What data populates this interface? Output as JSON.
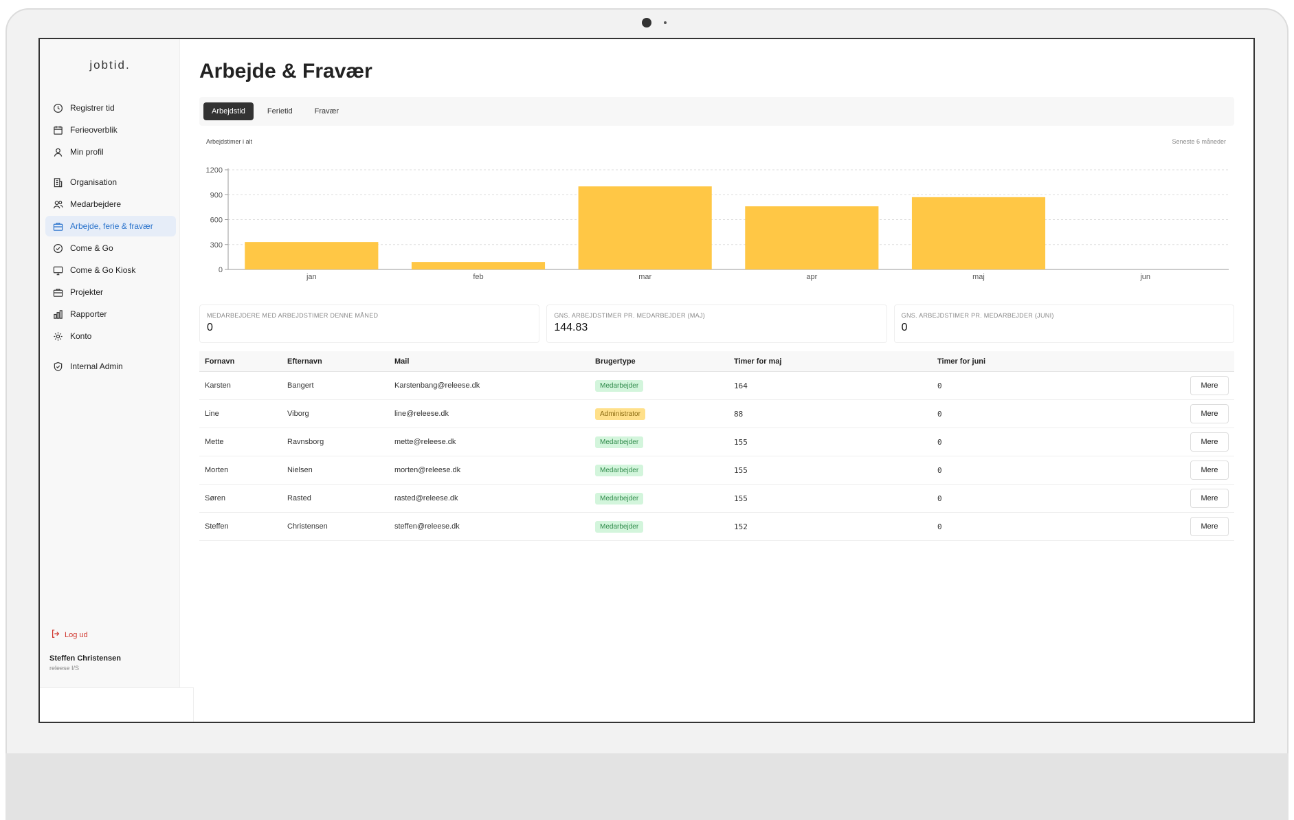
{
  "app": {
    "logo": "jobtid."
  },
  "sidebar": {
    "groups": [
      [
        {
          "label": "Registrer tid",
          "icon": "clock-icon"
        },
        {
          "label": "Ferieoverblik",
          "icon": "calendar-icon"
        },
        {
          "label": "Min profil",
          "icon": "user-icon"
        }
      ],
      [
        {
          "label": "Organisation",
          "icon": "building-icon"
        },
        {
          "label": "Medarbejdere",
          "icon": "users-icon"
        },
        {
          "label": "Arbejde, ferie & fravær",
          "icon": "briefcase-icon",
          "active": true
        },
        {
          "label": "Come & Go",
          "icon": "check-circle-icon"
        },
        {
          "label": "Come & Go Kiosk",
          "icon": "monitor-icon"
        },
        {
          "label": "Projekter",
          "icon": "folder-icon"
        },
        {
          "label": "Rapporter",
          "icon": "bar-chart-icon"
        },
        {
          "label": "Konto",
          "icon": "gear-icon"
        }
      ],
      [
        {
          "label": "Internal Admin",
          "icon": "shield-icon"
        }
      ]
    ],
    "logout": "Log ud",
    "user": {
      "name": "Steffen Christensen",
      "org": "releese I/S"
    }
  },
  "main": {
    "title": "Arbejde & Fravær",
    "tabs": [
      {
        "label": "Arbejdstid",
        "active": true
      },
      {
        "label": "Ferietid",
        "active": false
      },
      {
        "label": "Fravær",
        "active": false
      }
    ]
  },
  "chart_data": {
    "type": "bar",
    "title": "Arbejdstimer i alt",
    "range_label": "Seneste 6 måneder",
    "categories": [
      "jan",
      "feb",
      "mar",
      "apr",
      "maj",
      "jun"
    ],
    "values": [
      330,
      90,
      1000,
      760,
      870,
      0
    ],
    "yticks": [
      0,
      300,
      600,
      900,
      1200
    ],
    "ylim": [
      0,
      1200
    ],
    "grid": true,
    "color": "#ffc745"
  },
  "stats": [
    {
      "label": "Medarbejdere med arbejdstimer denne måned",
      "value": "0"
    },
    {
      "label": "Gns. arbejdstimer pr. medarbejder (maj)",
      "value": "144.83"
    },
    {
      "label": "Gns. arbejdstimer pr. medarbejder (juni)",
      "value": "0"
    }
  ],
  "table": {
    "headers": [
      "Fornavn",
      "Efternavn",
      "Mail",
      "Brugertype",
      "Timer for maj",
      "Timer for juni"
    ],
    "more_label": "Mere",
    "rows": [
      {
        "first": "Karsten",
        "last": "Bangert",
        "mail": "Karstenbang@releese.dk",
        "type": "Medarbejder",
        "may": "164",
        "june": "0"
      },
      {
        "first": "Line",
        "last": "Viborg",
        "mail": "line@releese.dk",
        "type": "Administrator",
        "may": "88",
        "june": "0"
      },
      {
        "first": "Mette",
        "last": "Ravnsborg",
        "mail": "mette@releese.dk",
        "type": "Medarbejder",
        "may": "155",
        "june": "0"
      },
      {
        "first": "Morten",
        "last": "Nielsen",
        "mail": "morten@releese.dk",
        "type": "Medarbejder",
        "may": "155",
        "june": "0"
      },
      {
        "first": "Søren",
        "last": "Rasted",
        "mail": "rasted@releese.dk",
        "type": "Medarbejder",
        "may": "155",
        "june": "0"
      },
      {
        "first": "Steffen",
        "last": "Christensen",
        "mail": "steffen@releese.dk",
        "type": "Medarbejder",
        "may": "152",
        "june": "0"
      }
    ]
  }
}
